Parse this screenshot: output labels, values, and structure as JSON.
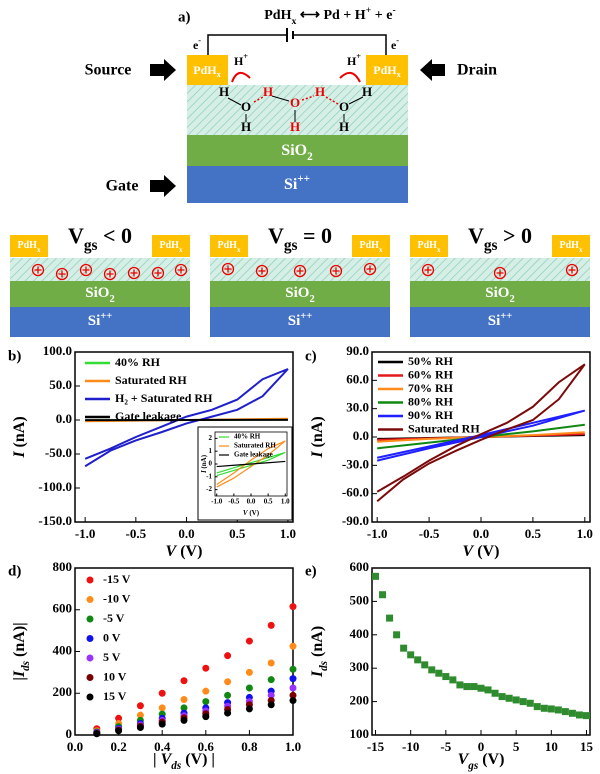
{
  "diagram": {
    "panel_label": "a)",
    "reaction": {
      "parts": [
        "PdH",
        "x",
        " ⟷ Pd + H",
        "+",
        " + e",
        "-"
      ],
      "style": [
        "n",
        "sub",
        "n",
        "sup",
        "n",
        "sup"
      ]
    },
    "electrons": [
      {
        "parts": [
          "e",
          "-"
        ],
        "style": [
          "n",
          "sup"
        ]
      },
      {
        "parts": [
          "e",
          "-"
        ],
        "style": [
          "n",
          "sup"
        ]
      }
    ],
    "source": "Source",
    "drain": "Drain",
    "gate": "Gate",
    "pads": [
      {
        "parts": [
          "PdH",
          "x"
        ],
        "style": [
          "n",
          "sub"
        ]
      },
      {
        "parts": [
          "PdH",
          "x"
        ],
        "style": [
          "n",
          "sub"
        ]
      }
    ],
    "protons": [
      {
        "parts": [
          "H",
          "+"
        ],
        "style": [
          "n",
          "sup"
        ]
      },
      {
        "parts": [
          "H",
          "+"
        ],
        "style": [
          "n",
          "sup"
        ]
      }
    ],
    "atoms": [
      "H",
      "O",
      "H",
      "H",
      "O",
      "H",
      "H",
      "O",
      "H",
      "H"
    ],
    "atom_colors": [
      "#000",
      "#000",
      "#000",
      "#e00",
      "#e00",
      "#e00",
      "#e00",
      "#000",
      "#000",
      "#000"
    ],
    "layers": [
      {
        "parts": [
          "SiO",
          "2"
        ],
        "style": [
          "n",
          "sub"
        ]
      },
      {
        "parts": [
          "Si",
          "++"
        ],
        "style": [
          "n",
          "sup"
        ]
      }
    ],
    "states": [
      {
        "title": {
          "parts": [
            "V",
            "gs",
            " < 0"
          ],
          "style": [
            "n",
            "sub",
            "n"
          ]
        },
        "pads": [
          {
            "parts": [
              "PdH",
              "x"
            ],
            "style": [
              "n",
              "sub"
            ]
          },
          {
            "parts": [
              "PdH",
              "x"
            ],
            "style": [
              "n",
              "sub"
            ]
          }
        ],
        "layers": [
          {
            "parts": [
              "SiO",
              "2"
            ],
            "style": [
              "n",
              "sub"
            ]
          },
          {
            "parts": [
              "Si",
              "++"
            ],
            "style": [
              "n",
              "sup"
            ]
          }
        ]
      },
      {
        "title": {
          "parts": [
            "V",
            "gs",
            " = 0"
          ],
          "style": [
            "n",
            "sub",
            "n"
          ]
        },
        "pads": [
          {
            "parts": [
              "PdH",
              "x"
            ],
            "style": [
              "n",
              "sub"
            ]
          },
          {
            "parts": [
              "PdH",
              "x"
            ],
            "style": [
              "n",
              "sub"
            ]
          }
        ],
        "layers": [
          {
            "parts": [
              "SiO",
              "2"
            ],
            "style": [
              "n",
              "sub"
            ]
          },
          {
            "parts": [
              "Si",
              "++"
            ],
            "style": [
              "n",
              "sup"
            ]
          }
        ]
      },
      {
        "title": {
          "parts": [
            "V",
            "gs",
            " > 0"
          ],
          "style": [
            "n",
            "sub",
            "n"
          ]
        },
        "pads": [
          {
            "parts": [
              "PdH",
              "x"
            ],
            "style": [
              "n",
              "sub"
            ]
          },
          {
            "parts": [
              "PdH",
              "x"
            ],
            "style": [
              "n",
              "sub"
            ]
          }
        ],
        "layers": [
          {
            "parts": [
              "SiO",
              "2"
            ],
            "style": [
              "n",
              "sub"
            ]
          },
          {
            "parts": [
              "Si",
              "++"
            ],
            "style": [
              "n",
              "sup"
            ]
          }
        ]
      }
    ]
  },
  "chart_data": [
    {
      "type": "line",
      "panel_label": "b)",
      "x_label": {
        "parts": [
          "V",
          " (V)"
        ],
        "style": [
          "i",
          "n"
        ]
      },
      "y_label": {
        "parts": [
          "I",
          " (nA)"
        ],
        "style": [
          "i",
          "n"
        ]
      },
      "xlim": [
        -1.1,
        1.05
      ],
      "ylim": [
        -150,
        100
      ],
      "xticks": [
        {
          "value": -1,
          "label": "-1.0"
        },
        -0.5,
        {
          "value": 0,
          "label": "0.0"
        },
        0.5,
        {
          "value": 1,
          "label": "1.0"
        }
      ],
      "yticks": [
        {
          "value": -150,
          "label": "-150.0"
        },
        {
          "value": -100,
          "label": "-100.0"
        },
        {
          "value": -50,
          "label": "-50.0"
        },
        {
          "value": 0,
          "label": "0.0"
        },
        {
          "value": 50,
          "label": "50.0"
        },
        {
          "value": 100,
          "label": "100.0"
        }
      ],
      "series": [
        {
          "name": "40% RH",
          "color": "#33dd33",
          "x": [
            -1,
            -0.5,
            0,
            0.5,
            1
          ],
          "values": [
            -0.8,
            -0.4,
            0,
            0.4,
            0.8
          ]
        },
        {
          "name": "Saturated RH",
          "color": "#ff8c1a",
          "x": [
            -1,
            -0.5,
            0,
            0.5,
            1
          ],
          "values": [
            -1.8,
            -0.9,
            0,
            0.9,
            1.8
          ]
        },
        {
          "name": "H₂ + Saturated RH",
          "color": "#1f1fcc",
          "x": [
            -1,
            -0.75,
            -0.5,
            -0.25,
            0,
            0.25,
            0.5,
            0.75,
            1,
            0.75,
            0.5,
            0.25,
            0,
            -0.25,
            -0.5,
            -0.75,
            -1
          ],
          "values": [
            -68,
            -45,
            -30,
            -18,
            -5,
            5,
            15,
            35,
            75,
            60,
            30,
            15,
            5,
            -10,
            -25,
            -42,
            -57
          ]
        },
        {
          "name": "Gate leakage",
          "color": "#000000",
          "x": [
            -1,
            -0.5,
            0,
            0.5,
            1
          ],
          "values": [
            -0.2,
            -0.1,
            0,
            0.1,
            0.2
          ]
        }
      ]
    },
    {
      "type": "line",
      "x_label": {
        "parts": [
          "V",
          " (V)"
        ],
        "style": [
          "i",
          "n"
        ]
      },
      "y_label": {
        "parts": [
          "I",
          " (nA)"
        ],
        "style": [
          "i",
          "n"
        ]
      },
      "xlim": [
        -1.05,
        1.05
      ],
      "ylim": [
        -2.5,
        2.5
      ],
      "xticks": [
        {
          "value": -1,
          "label": "-1.0"
        },
        -0.5,
        {
          "value": 0,
          "label": "0.0"
        },
        0.5,
        {
          "value": 1,
          "label": "1.0"
        }
      ],
      "yticks": [
        -2,
        -1,
        0,
        1,
        2
      ],
      "series": [
        {
          "name": "40% RH",
          "color": "#33dd33",
          "x": [
            -1,
            -0.5,
            0,
            0.5,
            1,
            0.5,
            0,
            -0.5,
            -1
          ],
          "values": [
            -0.9,
            -0.5,
            -0.1,
            0.3,
            0.9,
            0.5,
            0.1,
            -0.3,
            -0.7
          ]
        },
        {
          "name": "Saturated RH",
          "color": "#ff8c1a",
          "x": [
            -1,
            -0.5,
            0,
            0.5,
            1,
            0.5,
            0,
            -0.5,
            -1
          ],
          "values": [
            -1.8,
            -1.1,
            -0.2,
            0.7,
            1.8,
            1.2,
            0.3,
            -0.7,
            -1.6
          ]
        },
        {
          "name": "Gate leakage",
          "color": "#000000",
          "x": [
            -1,
            -0.5,
            0,
            0.5,
            1
          ],
          "values": [
            -0.2,
            -0.1,
            0,
            0.1,
            0.2
          ]
        }
      ]
    },
    {
      "type": "line",
      "panel_label": "c)",
      "x_label": {
        "parts": [
          "V",
          " (V)"
        ],
        "style": [
          "i",
          "n"
        ]
      },
      "y_label": {
        "parts": [
          "I",
          " (nA)"
        ],
        "style": [
          "i",
          "n"
        ]
      },
      "xlim": [
        -1.05,
        1.05
      ],
      "ylim": [
        -90,
        90
      ],
      "xticks": [
        {
          "value": -1,
          "label": "-1.0"
        },
        -0.5,
        {
          "value": 0,
          "label": "0.0"
        },
        0.5,
        {
          "value": 1,
          "label": "1.0"
        }
      ],
      "yticks": [
        {
          "value": -90,
          "label": "-90.0"
        },
        {
          "value": -60,
          "label": "-60.0"
        },
        {
          "value": -30,
          "label": "-30.0"
        },
        {
          "value": 0,
          "label": "0.0"
        },
        {
          "value": 30,
          "label": "30.0"
        },
        {
          "value": 60,
          "label": "60.0"
        },
        {
          "value": 90,
          "label": "90.0"
        }
      ],
      "series": [
        {
          "name": "50% RH",
          "color": "#000000",
          "x": [
            -1,
            -0.5,
            0,
            0.5,
            1
          ],
          "values": [
            -2,
            -1,
            0,
            1,
            2
          ]
        },
        {
          "name": "60% RH",
          "color": "#e31a1c",
          "x": [
            -1,
            -0.5,
            0,
            0.5,
            1
          ],
          "values": [
            -3,
            -1.5,
            0,
            1.5,
            3
          ]
        },
        {
          "name": "70% RH",
          "color": "#ff8c1a",
          "x": [
            -1,
            -0.5,
            0,
            0.5,
            1
          ],
          "values": [
            -5,
            -2,
            0,
            2,
            5
          ]
        },
        {
          "name": "80% RH",
          "color": "#118811",
          "x": [
            -1,
            -0.5,
            0,
            0.5,
            1
          ],
          "values": [
            -12,
            -6,
            0,
            6,
            13
          ]
        },
        {
          "name": "90% RH",
          "color": "#1f1fff",
          "x": [
            -1,
            -0.5,
            0,
            0.5,
            1,
            0.5,
            0,
            -0.5,
            -1
          ],
          "values": [
            -25,
            -12,
            0,
            12,
            28,
            15,
            2,
            -10,
            -22
          ]
        },
        {
          "name": "Saturated RH",
          "color": "#7b0a0a",
          "x": [
            -1,
            -0.75,
            -0.5,
            -0.25,
            0,
            0.25,
            0.5,
            0.75,
            1,
            0.75,
            0.5,
            0.25,
            0,
            -0.25,
            -0.5,
            -0.75,
            -1
          ],
          "values": [
            -68,
            -45,
            -28,
            -15,
            -3,
            8,
            18,
            40,
            77,
            58,
            32,
            15,
            3,
            -10,
            -25,
            -42,
            -58
          ]
        }
      ]
    },
    {
      "type": "scatter",
      "panel_label": "d)",
      "x_label": {
        "parts": [
          "| ",
          "V",
          "ds",
          " (V) |"
        ],
        "style": [
          "n",
          "i",
          "isub",
          "n"
        ]
      },
      "y_label": {
        "parts": [
          "|",
          "I",
          "ds",
          " (nA)|"
        ],
        "style": [
          "n",
          "i",
          "isub",
          "n"
        ]
      },
      "xlim": [
        0,
        1
      ],
      "ylim": [
        0,
        800
      ],
      "xticks": [
        {
          "value": 0,
          "label": "0.0"
        },
        0.2,
        0.4,
        0.6,
        0.8,
        {
          "value": 1,
          "label": "1.0"
        }
      ],
      "yticks": [
        0,
        200,
        400,
        600,
        800
      ],
      "x": [
        0.1,
        0.2,
        0.3,
        0.4,
        0.5,
        0.6,
        0.7,
        0.8,
        0.9,
        1.0
      ],
      "series": [
        {
          "name": "-15 V",
          "color": "#ee1111",
          "values": [
            30,
            80,
            140,
            200,
            260,
            320,
            380,
            450,
            525,
            615
          ]
        },
        {
          "name": "-10 V",
          "color": "#ff8c1a",
          "values": [
            20,
            55,
            95,
            130,
            170,
            210,
            255,
            300,
            345,
            425
          ]
        },
        {
          "name": "-5 V",
          "color": "#118811",
          "values": [
            15,
            40,
            70,
            100,
            130,
            160,
            190,
            225,
            265,
            315
          ]
        },
        {
          "name": "0 V",
          "color": "#1111ee",
          "values": [
            12,
            32,
            55,
            80,
            105,
            130,
            155,
            180,
            210,
            270
          ]
        },
        {
          "name": "5 V",
          "color": "#9933ff",
          "values": [
            10,
            28,
            48,
            70,
            92,
            115,
            138,
            160,
            190,
            225
          ]
        },
        {
          "name": "10 V",
          "color": "#7b0000",
          "values": [
            8,
            24,
            42,
            62,
            82,
            102,
            122,
            145,
            165,
            190
          ]
        },
        {
          "name": "15 V",
          "color": "#000000",
          "values": [
            6,
            20,
            36,
            52,
            70,
            88,
            105,
            125,
            145,
            165
          ]
        }
      ]
    },
    {
      "type": "scatter",
      "panel_label": "e)",
      "marker": "square",
      "color": "#2e8b2e",
      "x_label": {
        "parts": [
          "V",
          "gs",
          " (V)"
        ],
        "style": [
          "i",
          "isub",
          "n"
        ]
      },
      "y_label": {
        "parts": [
          "I",
          "ds",
          " (nA)"
        ],
        "style": [
          "i",
          "isub",
          "n"
        ]
      },
      "xlim": [
        -15.5,
        15.5
      ],
      "ylim": [
        100,
        600
      ],
      "xticks": [
        -15,
        -10,
        -5,
        0,
        5,
        10,
        15
      ],
      "yticks": [
        100,
        200,
        300,
        400,
        500,
        600
      ],
      "x": [
        -15,
        -14,
        -13,
        -12,
        -11,
        -10,
        -9,
        -8,
        -7,
        -6,
        -5,
        -4,
        -3,
        -2,
        -1,
        0,
        1,
        2,
        3,
        4,
        5,
        6,
        7,
        8,
        9,
        10,
        11,
        12,
        13,
        14,
        15
      ],
      "values": [
        575,
        520,
        450,
        400,
        360,
        340,
        325,
        310,
        295,
        285,
        275,
        265,
        250,
        245,
        245,
        240,
        235,
        225,
        215,
        210,
        205,
        200,
        195,
        185,
        180,
        178,
        175,
        170,
        165,
        160,
        158
      ]
    }
  ]
}
